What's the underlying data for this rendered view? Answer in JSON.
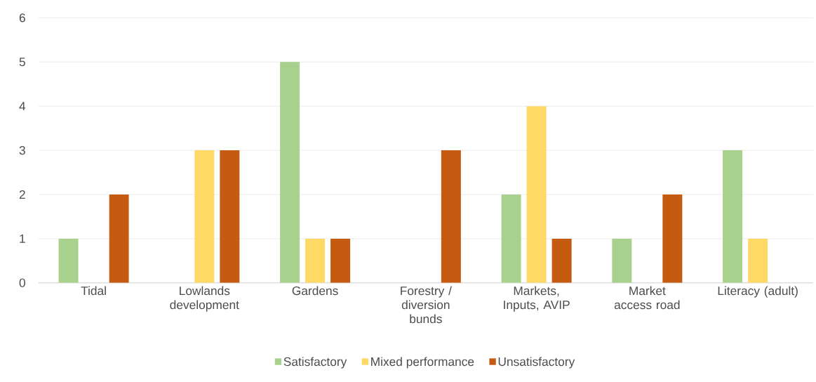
{
  "chart_data": {
    "type": "bar",
    "categories": [
      "Tidal",
      "Lowlands development",
      "Gardens",
      "Forestry / diversion bunds",
      "Markets, Inputs, AVIP",
      "Market access road",
      "Literacy (adult)"
    ],
    "series": [
      {
        "name": "Satisfactory",
        "color": "#a9d18e",
        "values": [
          1,
          0,
          5,
          0,
          2,
          1,
          3
        ]
      },
      {
        "name": "Mixed performance",
        "color": "#ffd966",
        "values": [
          0,
          3,
          1,
          0,
          4,
          0,
          1
        ]
      },
      {
        "name": "Unsatisfactory",
        "color": "#c55a11",
        "values": [
          2,
          3,
          1,
          3,
          1,
          2,
          0
        ]
      }
    ],
    "ylim": [
      0,
      6
    ],
    "yticks": [
      0,
      1,
      2,
      3,
      4,
      5,
      6
    ],
    "grid": "y",
    "legend": "bottom"
  }
}
